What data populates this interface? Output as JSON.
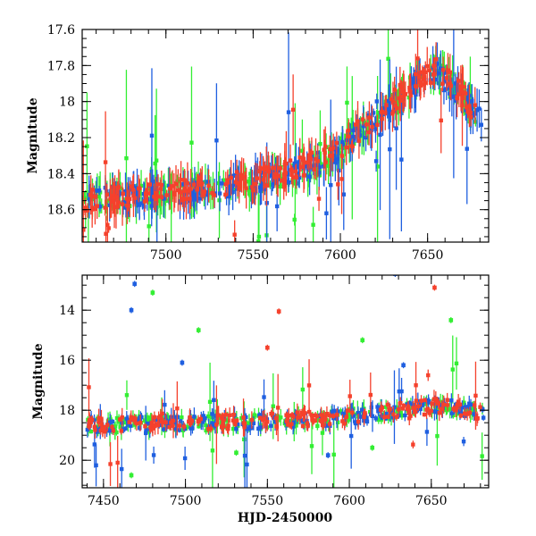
{
  "chart_data": [
    {
      "type": "scatter",
      "panel": "top",
      "title": "",
      "xlabel": "",
      "ylabel": "Magnitude",
      "xlim": [
        7452,
        7685
      ],
      "ylim": [
        17.6,
        18.78
      ],
      "y_inverted": true,
      "x_ticks": [
        7500,
        7550,
        7600,
        7650
      ],
      "x_tick_labels": [
        "7500",
        "7550",
        "7600",
        "7650"
      ],
      "y_ticks": [
        17.6,
        17.8,
        18.0,
        18.2,
        18.4,
        18.6
      ],
      "y_tick_labels": [
        "17.6",
        "17.8",
        "18",
        "18.2",
        "18.4",
        "18.6"
      ],
      "error_bars": true,
      "series": [
        {
          "color": "#33ee33",
          "trend": [
            [
              7452,
              18.55
            ],
            [
              7500,
              18.5
            ],
            [
              7550,
              18.45
            ],
            [
              7580,
              18.4
            ],
            [
              7600,
              18.25
            ],
            [
              7625,
              18.05
            ],
            [
              7645,
              17.88
            ],
            [
              7655,
              17.83
            ],
            [
              7670,
              17.95
            ],
            [
              7680,
              18.1
            ]
          ]
        },
        {
          "color": "#1f5fe0",
          "trend": [
            [
              7452,
              18.54
            ],
            [
              7500,
              18.52
            ],
            [
              7550,
              18.45
            ],
            [
              7580,
              18.38
            ],
            [
              7600,
              18.27
            ],
            [
              7625,
              18.06
            ],
            [
              7645,
              17.9
            ],
            [
              7655,
              17.84
            ],
            [
              7670,
              17.97
            ],
            [
              7682,
              18.12
            ]
          ]
        },
        {
          "color": "#f5412c",
          "trend": [
            [
              7452,
              18.55
            ],
            [
              7500,
              18.5
            ],
            [
              7550,
              18.44
            ],
            [
              7580,
              18.35
            ],
            [
              7600,
              18.25
            ],
            [
              7625,
              18.04
            ],
            [
              7645,
              17.88
            ],
            [
              7655,
              17.82
            ],
            [
              7670,
              17.96
            ],
            [
              7680,
              18.1
            ]
          ]
        }
      ]
    },
    {
      "type": "scatter",
      "panel": "bottom",
      "title": "",
      "xlabel": "HJD-2450000",
      "ylabel": "Magnitude",
      "xlim": [
        7437,
        7685
      ],
      "ylim": [
        12.6,
        21.1
      ],
      "y_inverted": true,
      "x_ticks": [
        7450,
        7500,
        7550,
        7600,
        7650
      ],
      "x_tick_labels": [
        "7450",
        "7500",
        "7550",
        "7600",
        "7650"
      ],
      "y_ticks": [
        14,
        16,
        18,
        20
      ],
      "y_tick_labels": [
        "14",
        "16",
        "18",
        "20"
      ],
      "error_bars": true,
      "outliers": [
        {
          "x": 7469,
          "y": 12.95,
          "color": "#1f5fe0"
        },
        {
          "x": 7467,
          "y": 14.0,
          "color": "#1f5fe0"
        },
        {
          "x": 7480,
          "y": 13.3,
          "color": "#33ee33"
        },
        {
          "x": 7508,
          "y": 14.8,
          "color": "#33ee33"
        },
        {
          "x": 7498,
          "y": 16.1,
          "color": "#1f5fe0"
        },
        {
          "x": 7557,
          "y": 14.05,
          "color": "#f5412c"
        },
        {
          "x": 7550,
          "y": 15.5,
          "color": "#f5412c"
        },
        {
          "x": 7628,
          "y": 12.55,
          "color": "#1f5fe0"
        },
        {
          "x": 7652,
          "y": 13.1,
          "color": "#f5412c"
        },
        {
          "x": 7662,
          "y": 14.4,
          "color": "#33ee33"
        },
        {
          "x": 7608,
          "y": 15.2,
          "color": "#33ee33"
        },
        {
          "x": 7633,
          "y": 16.2,
          "color": "#1f5fe0"
        },
        {
          "x": 7467,
          "y": 20.6,
          "color": "#33ee33"
        },
        {
          "x": 7587,
          "y": 19.8,
          "color": "#1f5fe0"
        },
        {
          "x": 7614,
          "y": 19.5,
          "color": "#33ee33"
        },
        {
          "x": 7531,
          "y": 19.7,
          "color": "#33ee33"
        }
      ],
      "series": [
        {
          "color": "#33ee33",
          "trend": [
            [
              7440,
              18.6
            ],
            [
              7500,
              18.55
            ],
            [
              7550,
              18.45
            ],
            [
              7580,
              18.35
            ],
            [
              7600,
              18.25
            ],
            [
              7625,
              18.05
            ],
            [
              7645,
              17.9
            ],
            [
              7655,
              17.85
            ],
            [
              7670,
              17.95
            ],
            [
              7682,
              18.1
            ]
          ]
        },
        {
          "color": "#1f5fe0",
          "trend": [
            [
              7440,
              18.58
            ],
            [
              7500,
              18.52
            ],
            [
              7550,
              18.45
            ],
            [
              7580,
              18.38
            ],
            [
              7600,
              18.27
            ],
            [
              7625,
              18.06
            ],
            [
              7645,
              17.9
            ],
            [
              7655,
              17.84
            ],
            [
              7670,
              17.97
            ],
            [
              7682,
              18.12
            ]
          ]
        },
        {
          "color": "#f5412c",
          "trend": [
            [
              7440,
              18.58
            ],
            [
              7500,
              18.5
            ],
            [
              7550,
              18.44
            ],
            [
              7580,
              18.35
            ],
            [
              7600,
              18.25
            ],
            [
              7625,
              18.04
            ],
            [
              7645,
              17.88
            ],
            [
              7655,
              17.82
            ],
            [
              7670,
              17.96
            ],
            [
              7682,
              18.1
            ]
          ]
        }
      ]
    }
  ]
}
